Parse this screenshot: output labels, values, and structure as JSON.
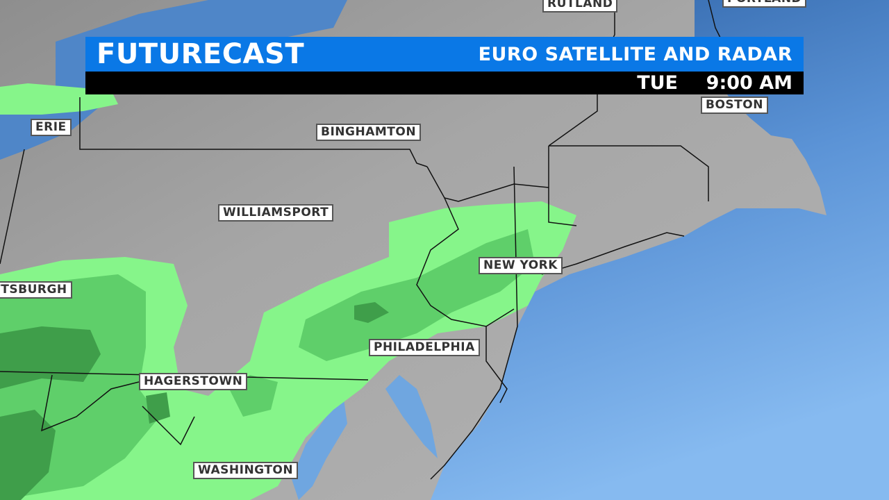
{
  "header": {
    "title": "FUTURECAST",
    "subtitle": "EURO SATELLITE AND RADAR",
    "day": "TUE",
    "time": "9:00 AM"
  },
  "colors": {
    "header_blue": "#0a78e6",
    "land": "#a9a9a9",
    "water": "#6fa6e0",
    "radar_light": "#86f58a",
    "radar_medium": "#5fcf6a",
    "radar_heavy": "#3f9e4a"
  },
  "cities": {
    "rutland": "RUTLAND",
    "portland": "PORTLAND",
    "boston": "BOSTON",
    "erie": "ERIE",
    "binghamton": "BINGHAMTON",
    "williamsport": "WILLIAMSPORT",
    "new_york": "NEW YORK",
    "pittsburgh": "PITTSBURGH",
    "philadelphia": "PHILADELPHIA",
    "hagerstown": "HAGERSTOWN",
    "washington": "WASHINGTON"
  }
}
